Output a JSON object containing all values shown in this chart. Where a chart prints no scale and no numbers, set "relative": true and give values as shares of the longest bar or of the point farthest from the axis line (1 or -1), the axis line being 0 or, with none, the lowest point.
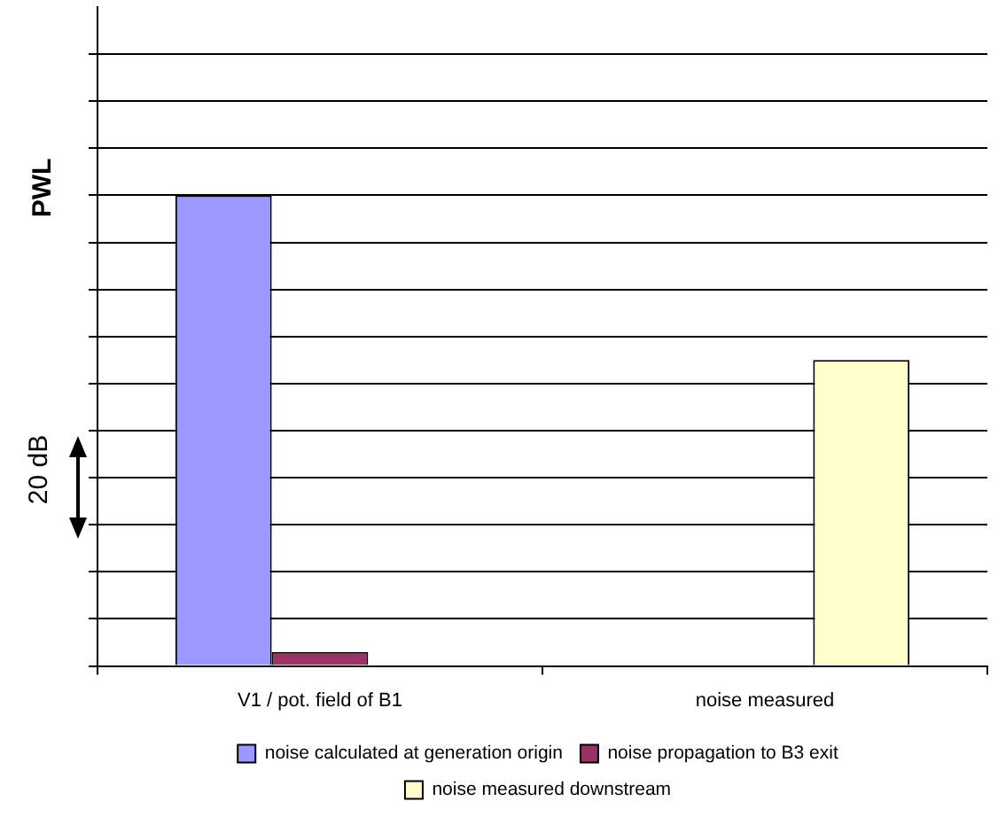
{
  "chart_data": {
    "type": "bar",
    "relative": true,
    "ylabel": "PWL",
    "annotations": [
      "20 dB"
    ],
    "categories": [
      "V1 / pot. field of B1",
      "noise measured"
    ],
    "series": [
      {
        "name": "noise calculated at generation origin",
        "color": "#9999ff",
        "values": [
          1,
          null
        ]
      },
      {
        "name": "noise propagation to B3 exit",
        "color": "#993366",
        "values": [
          0.03,
          null
        ]
      },
      {
        "name": "noise measured downstream",
        "color": "#ffffcc",
        "values": [
          null,
          0.65
        ]
      }
    ],
    "grid": "y",
    "legend": "bottom"
  }
}
